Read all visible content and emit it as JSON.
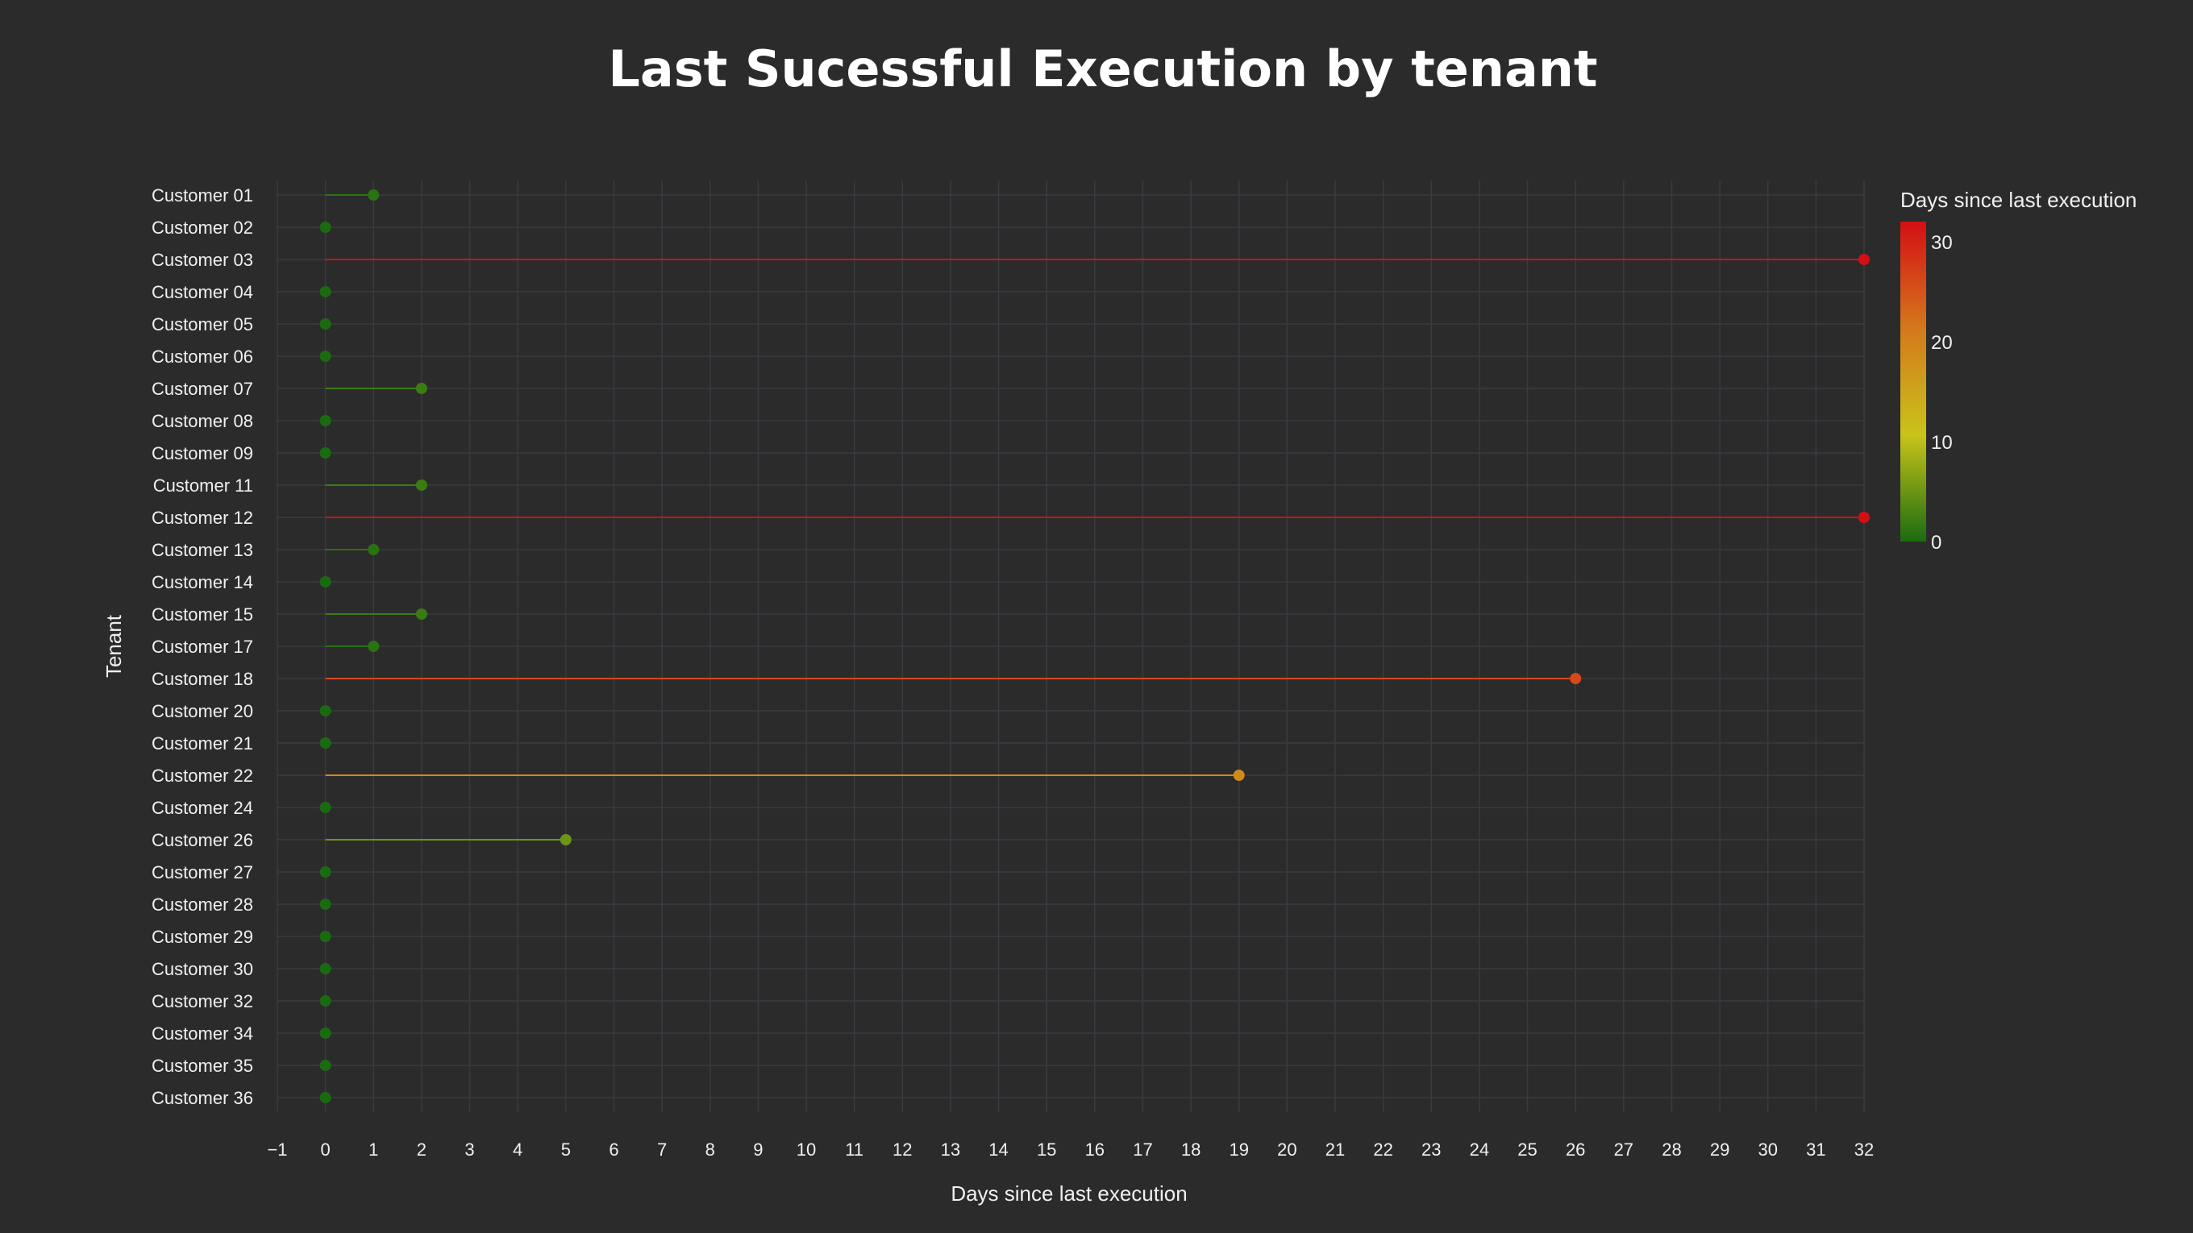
{
  "chart_data": {
    "type": "lollipop",
    "title": "Last Sucessful Execution by tenant",
    "xlabel": "Days since last execution",
    "ylabel": "Tenant",
    "xlim": [
      -1,
      32
    ],
    "x_ticks": [
      -1,
      0,
      1,
      2,
      3,
      4,
      5,
      6,
      7,
      8,
      9,
      10,
      11,
      12,
      13,
      14,
      15,
      16,
      17,
      18,
      19,
      20,
      21,
      22,
      23,
      24,
      25,
      26,
      27,
      28,
      29,
      30,
      31,
      32
    ],
    "x_tick_labels": [
      "−1",
      "0",
      "1",
      "2",
      "3",
      "4",
      "5",
      "6",
      "7",
      "8",
      "9",
      "10",
      "11",
      "12",
      "13",
      "14",
      "15",
      "16",
      "17",
      "18",
      "19",
      "20",
      "21",
      "22",
      "23",
      "24",
      "25",
      "26",
      "27",
      "28",
      "29",
      "30",
      "31",
      "32"
    ],
    "grid": true,
    "categories": [
      "Customer 01",
      "Customer 02",
      "Customer 03",
      "Customer 04",
      "Customer 05",
      "Customer 06",
      "Customer 07",
      "Customer 08",
      "Customer 09",
      "Customer 11",
      "Customer 12",
      "Customer 13",
      "Customer 14",
      "Customer 15",
      "Customer 17",
      "Customer 18",
      "Customer 20",
      "Customer 21",
      "Customer 22",
      "Customer 24",
      "Customer 26",
      "Customer 27",
      "Customer 28",
      "Customer 29",
      "Customer 30",
      "Customer 32",
      "Customer 34",
      "Customer 35",
      "Customer 36"
    ],
    "values": [
      1,
      0,
      32,
      0,
      0,
      0,
      2,
      0,
      0,
      2,
      32,
      1,
      0,
      2,
      1,
      26,
      0,
      0,
      19,
      0,
      5,
      0,
      0,
      0,
      0,
      0,
      0,
      0,
      0
    ],
    "colorbar": {
      "title": "Days since last execution",
      "range": [
        0,
        32
      ],
      "ticks": [
        0,
        10,
        20,
        30
      ],
      "colors": [
        "#1a6b10",
        "#c8c41a",
        "#d4781c",
        "#d40f14"
      ],
      "placement": "right"
    }
  },
  "colors": {
    "background": "#2b2b2b",
    "grid": "#3a3a42",
    "text": "#f0f0f0"
  }
}
